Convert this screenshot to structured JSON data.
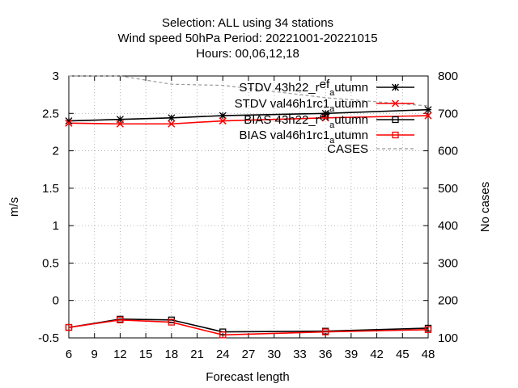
{
  "chart_data": {
    "type": "line",
    "title_lines": [
      "Selection: ALL using    34 stations",
      "Wind speed 50hPa   Period: 20221001-20221015",
      "Hours:  00,06,12,18"
    ],
    "xlabel": "Forecast length",
    "ylabel": "m/s",
    "y2label": "No cases",
    "x_ticks": [
      6,
      9,
      12,
      15,
      18,
      21,
      24,
      27,
      30,
      33,
      36,
      39,
      42,
      45,
      48
    ],
    "y_ticks": [
      -0.5,
      0,
      0.5,
      1,
      1.5,
      2,
      2.5,
      3
    ],
    "y_tick_labels": [
      "-0.5",
      "0",
      "0.5",
      "1",
      "1.5",
      "2",
      "2.5",
      "3"
    ],
    "y2_ticks": [
      100,
      200,
      300,
      400,
      500,
      600,
      700,
      800
    ],
    "xlim": [
      6,
      48
    ],
    "ylim": [
      -0.5,
      3
    ],
    "y2lim": [
      100,
      800
    ],
    "grid": true,
    "legend_position": "top-right",
    "series": [
      {
        "name_parts": [
          "STDV 43h22_r",
          "ef",
          "a",
          "utumn"
        ],
        "axis": "y",
        "color": "#000000",
        "marker": "star",
        "x": [
          6,
          12,
          18,
          24,
          36,
          48
        ],
        "values": [
          2.4,
          2.42,
          2.44,
          2.47,
          2.5,
          2.55
        ]
      },
      {
        "name_parts": [
          "STDV val46h1rc1",
          "",
          "a",
          "utumn"
        ],
        "axis": "y",
        "color": "#ff0000",
        "marker": "x",
        "x": [
          6,
          12,
          18,
          24,
          36,
          48
        ],
        "values": [
          2.37,
          2.36,
          2.36,
          2.4,
          2.44,
          2.47
        ]
      },
      {
        "name_parts": [
          "BIAS 43h22_r",
          "ef",
          "a",
          "utumn"
        ],
        "axis": "y",
        "color": "#000000",
        "marker": "square",
        "x": [
          6,
          12,
          18,
          24,
          36,
          48
        ],
        "values": [
          -0.36,
          -0.25,
          -0.26,
          -0.42,
          -0.41,
          -0.37
        ]
      },
      {
        "name_parts": [
          "BIAS val46h1rc1",
          "",
          "a",
          "utumn"
        ],
        "axis": "y",
        "color": "#ff0000",
        "marker": "square",
        "x": [
          6,
          12,
          18,
          24,
          36,
          48
        ],
        "values": [
          -0.36,
          -0.26,
          -0.29,
          -0.46,
          -0.42,
          -0.39
        ]
      },
      {
        "name_parts": [
          "CASES",
          "",
          "",
          ""
        ],
        "axis": "y2",
        "color": "#999999",
        "marker": "none",
        "dash": true,
        "x": [
          6,
          12,
          18,
          24,
          36,
          48
        ],
        "values": [
          800,
          800,
          778,
          775,
          742,
          720
        ]
      }
    ]
  }
}
